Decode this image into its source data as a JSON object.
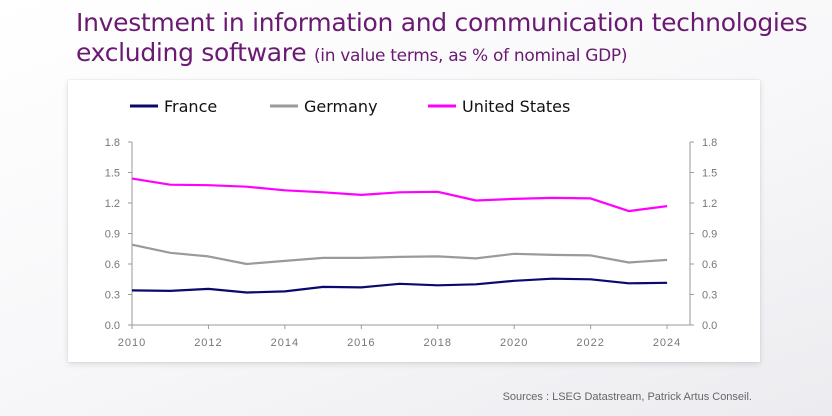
{
  "header": {
    "title_line1": "Investment in information and communication technologies",
    "title_line2": "excluding software",
    "title_suffix": "(in value terms, as % of nominal GDP)"
  },
  "footer": {
    "source": "Sources : LSEG Datastream, Patrick Artus Conseil."
  },
  "chart_data": {
    "type": "line",
    "title": "Investment in information and communication technologies excluding software (in value terms, as % of nominal GDP)",
    "xlabel": "",
    "ylabel": "",
    "x": [
      2010,
      2011,
      2012,
      2013,
      2014,
      2015,
      2016,
      2017,
      2018,
      2019,
      2020,
      2021,
      2022,
      2023,
      2024
    ],
    "x_ticks": [
      "2010",
      "2012",
      "2014",
      "2016",
      "2018",
      "2020",
      "2022",
      "2024"
    ],
    "x_tick_values": [
      2010,
      2012,
      2014,
      2016,
      2018,
      2020,
      2022,
      2024
    ],
    "y_ticks": [
      "0.0",
      "0.3",
      "0.6",
      "0.9",
      "1.2",
      "1.5",
      "1.8"
    ],
    "y_tick_values": [
      0,
      0.3,
      0.6,
      0.9,
      1.2,
      1.5,
      1.8
    ],
    "ylim": [
      0,
      1.8
    ],
    "xlim": [
      2010,
      2024.6
    ],
    "grid": false,
    "legend_position": "top",
    "series": [
      {
        "name": "France",
        "color": "#0a0a6e",
        "values": [
          0.34,
          0.335,
          0.355,
          0.32,
          0.33,
          0.375,
          0.37,
          0.405,
          0.39,
          0.4,
          0.435,
          0.455,
          0.45,
          0.41,
          0.415
        ]
      },
      {
        "name": "Germany",
        "color": "#9a9a9a",
        "values": [
          0.79,
          0.71,
          0.675,
          0.6,
          0.63,
          0.66,
          0.66,
          0.67,
          0.675,
          0.655,
          0.7,
          0.69,
          0.685,
          0.615,
          0.64
        ]
      },
      {
        "name": "United States",
        "color": "#ff00ff",
        "values": [
          1.44,
          1.38,
          1.375,
          1.36,
          1.325,
          1.305,
          1.28,
          1.305,
          1.31,
          1.225,
          1.24,
          1.25,
          1.245,
          1.12,
          1.17
        ]
      }
    ]
  }
}
